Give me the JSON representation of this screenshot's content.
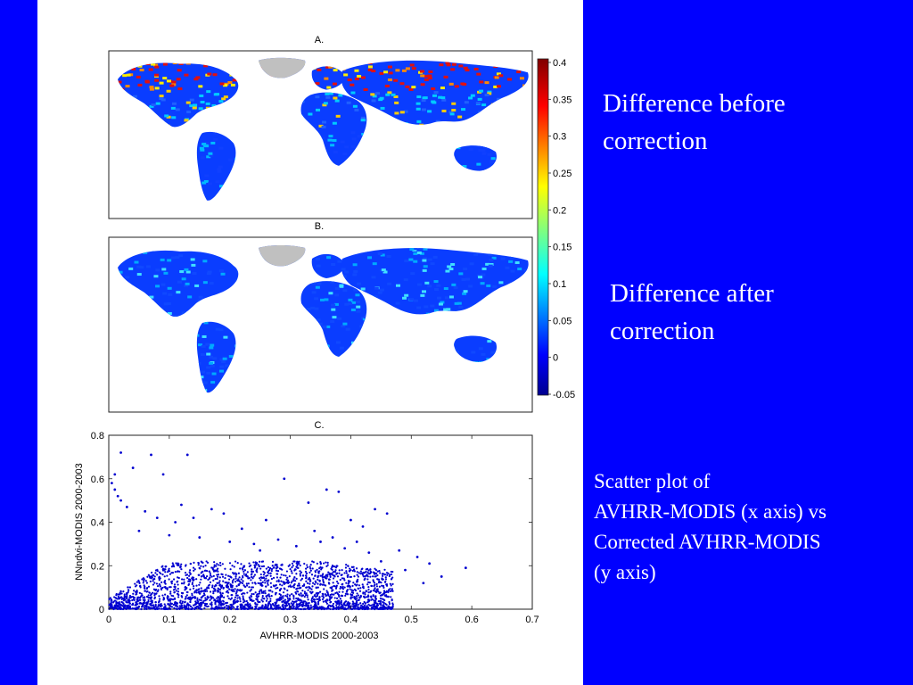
{
  "captions": {
    "before": [
      "Difference before",
      "correction"
    ],
    "after": [
      "Difference after",
      "correction"
    ],
    "scatter": [
      "Scatter plot of",
      "AVHRR-MODIS (x axis) vs",
      "Corrected AVHRR-MODIS",
      "(y axis)"
    ]
  },
  "colors": {
    "background": "#0000ff",
    "points": "#0000d0",
    "land_nodata": "#c0c0c0"
  },
  "chart_data": [
    {
      "type": "heatmap",
      "title": "A.",
      "description_map": "global map",
      "colorbar": {
        "range": [
          -0.05,
          0.4
        ],
        "ticks": [
          "0.4",
          "0.35",
          "0.3",
          "0.25",
          "0.2",
          "0.15",
          "0.1",
          "0.05",
          "0",
          "-0.05"
        ],
        "colormap": "jet"
      }
    },
    {
      "type": "heatmap",
      "title": "B.",
      "colorbar_shared": true
    },
    {
      "type": "scatter",
      "title": "C.",
      "xlabel": "AVHRR-MODIS 2000-2003",
      "ylabel": "NNndvi-MODIS 2000-2003",
      "xlim": [
        0,
        0.7
      ],
      "ylim": [
        0,
        0.8
      ],
      "xticks": [
        "0",
        "0.1",
        "0.2",
        "0.3",
        "0.4",
        "0.5",
        "0.6",
        "0.7"
      ],
      "yticks": [
        "0",
        "0.2",
        "0.4",
        "0.6",
        "0.8"
      ],
      "points": [
        [
          0.02,
          0.72
        ],
        [
          0.07,
          0.71
        ],
        [
          0.13,
          0.71
        ],
        [
          0.04,
          0.65
        ],
        [
          0.09,
          0.62
        ],
        [
          0.29,
          0.6
        ],
        [
          0.005,
          0.58
        ],
        [
          0.01,
          0.55
        ],
        [
          0.02,
          0.5
        ],
        [
          0.03,
          0.47
        ],
        [
          0.06,
          0.45
        ],
        [
          0.08,
          0.42
        ],
        [
          0.11,
          0.4
        ],
        [
          0.14,
          0.42
        ],
        [
          0.17,
          0.46
        ],
        [
          0.19,
          0.44
        ],
        [
          0.22,
          0.37
        ],
        [
          0.26,
          0.41
        ],
        [
          0.36,
          0.55
        ],
        [
          0.38,
          0.54
        ],
        [
          0.33,
          0.49
        ],
        [
          0.44,
          0.46
        ],
        [
          0.46,
          0.44
        ],
        [
          0.4,
          0.41
        ],
        [
          0.42,
          0.38
        ],
        [
          0.48,
          0.27
        ],
        [
          0.51,
          0.24
        ],
        [
          0.53,
          0.21
        ],
        [
          0.59,
          0.19
        ],
        [
          0.55,
          0.15
        ],
        [
          0.05,
          0.36
        ],
        [
          0.1,
          0.34
        ],
        [
          0.15,
          0.33
        ],
        [
          0.2,
          0.31
        ],
        [
          0.24,
          0.3
        ],
        [
          0.28,
          0.32
        ],
        [
          0.31,
          0.29
        ],
        [
          0.35,
          0.31
        ],
        [
          0.39,
          0.28
        ],
        [
          0.43,
          0.26
        ],
        [
          0.45,
          0.22
        ],
        [
          0.49,
          0.18
        ],
        [
          0.52,
          0.12
        ],
        [
          0.01,
          0.62
        ],
        [
          0.015,
          0.52
        ],
        [
          0.12,
          0.48
        ],
        [
          0.25,
          0.27
        ],
        [
          0.34,
          0.36
        ],
        [
          0.37,
          0.33
        ],
        [
          0.41,
          0.31
        ]
      ],
      "dense_cloud": {
        "x_range": [
          0,
          0.47
        ],
        "y_range": [
          0,
          0.22
        ],
        "approx_points": 2500
      }
    }
  ]
}
